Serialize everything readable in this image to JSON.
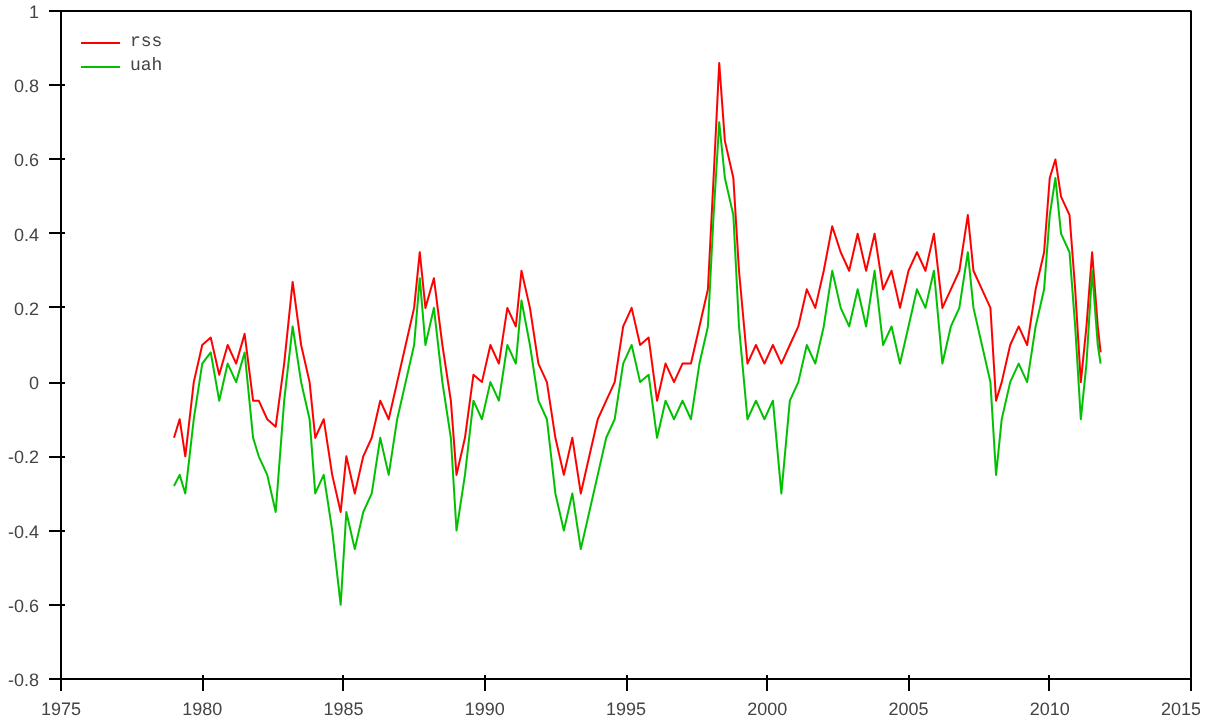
{
  "chart_data": {
    "type": "line",
    "xlim": [
      1975,
      2015
    ],
    "ylim": [
      -0.8,
      1
    ],
    "xticks": [
      1975,
      1980,
      1985,
      1990,
      1995,
      2000,
      2005,
      2010,
      2015
    ],
    "yticks": [
      -0.8,
      -0.6,
      -0.4,
      -0.2,
      0,
      0.2,
      0.4,
      0.6,
      0.8,
      1
    ],
    "grid": false,
    "legend": "top left",
    "x": [
      1979.0,
      1979.2,
      1979.4,
      1979.7,
      1980.0,
      1980.3,
      1980.6,
      1980.9,
      1981.2,
      1981.5,
      1981.8,
      1982.0,
      1982.3,
      1982.6,
      1982.9,
      1983.2,
      1983.5,
      1983.8,
      1984.0,
      1984.3,
      1984.6,
      1984.9,
      1985.1,
      1985.4,
      1985.7,
      1986.0,
      1986.3,
      1986.6,
      1986.9,
      1987.2,
      1987.5,
      1987.7,
      1987.9,
      1988.2,
      1988.5,
      1988.8,
      1989.0,
      1989.3,
      1989.6,
      1989.9,
      1990.2,
      1990.5,
      1990.8,
      1991.1,
      1991.3,
      1991.6,
      1991.9,
      1992.2,
      1992.5,
      1992.8,
      1993.1,
      1993.4,
      1993.7,
      1994.0,
      1994.3,
      1994.6,
      1994.9,
      1995.2,
      1995.5,
      1995.8,
      1996.1,
      1996.4,
      1996.7,
      1997.0,
      1997.3,
      1997.6,
      1997.9,
      1998.1,
      1998.3,
      1998.5,
      1998.8,
      1999.0,
      1999.3,
      1999.6,
      1999.9,
      2000.2,
      2000.5,
      2000.8,
      2001.1,
      2001.4,
      2001.7,
      2002.0,
      2002.3,
      2002.6,
      2002.9,
      2003.2,
      2003.5,
      2003.8,
      2004.1,
      2004.4,
      2004.7,
      2005.0,
      2005.3,
      2005.6,
      2005.9,
      2006.2,
      2006.5,
      2006.8,
      2007.1,
      2007.3,
      2007.6,
      2007.9,
      2008.1,
      2008.3,
      2008.6,
      2008.9,
      2009.2,
      2009.5,
      2009.8,
      2010.0,
      2010.2,
      2010.4,
      2010.7,
      2010.9,
      2011.1,
      2011.3,
      2011.5,
      2011.7,
      2011.8
    ],
    "series": [
      {
        "name": "rss",
        "color": "#ff0000",
        "values": [
          -0.15,
          -0.1,
          -0.2,
          0.0,
          0.1,
          0.12,
          0.02,
          0.1,
          0.05,
          0.13,
          -0.05,
          -0.05,
          -0.1,
          -0.12,
          0.05,
          0.27,
          0.1,
          0.0,
          -0.15,
          -0.1,
          -0.25,
          -0.35,
          -0.2,
          -0.3,
          -0.2,
          -0.15,
          -0.05,
          -0.1,
          0.0,
          0.1,
          0.2,
          0.35,
          0.2,
          0.28,
          0.1,
          -0.05,
          -0.25,
          -0.15,
          0.02,
          0.0,
          0.1,
          0.05,
          0.2,
          0.15,
          0.3,
          0.2,
          0.05,
          0.0,
          -0.15,
          -0.25,
          -0.15,
          -0.3,
          -0.2,
          -0.1,
          -0.05,
          0.0,
          0.15,
          0.2,
          0.1,
          0.12,
          -0.05,
          0.05,
          0.0,
          0.05,
          0.05,
          0.15,
          0.25,
          0.55,
          0.86,
          0.65,
          0.55,
          0.3,
          0.05,
          0.1,
          0.05,
          0.1,
          0.05,
          0.1,
          0.15,
          0.25,
          0.2,
          0.3,
          0.42,
          0.35,
          0.3,
          0.4,
          0.3,
          0.4,
          0.25,
          0.3,
          0.2,
          0.3,
          0.35,
          0.3,
          0.4,
          0.2,
          0.25,
          0.3,
          0.45,
          0.3,
          0.25,
          0.2,
          -0.05,
          0.0,
          0.1,
          0.15,
          0.1,
          0.25,
          0.35,
          0.55,
          0.6,
          0.5,
          0.45,
          0.25,
          0.0,
          0.15,
          0.35,
          0.15,
          0.08
        ]
      },
      {
        "name": "uah",
        "color": "#00c000",
        "values": [
          -0.28,
          -0.25,
          -0.3,
          -0.1,
          0.05,
          0.08,
          -0.05,
          0.05,
          0.0,
          0.08,
          -0.15,
          -0.2,
          -0.25,
          -0.35,
          -0.05,
          0.15,
          0.0,
          -0.1,
          -0.3,
          -0.25,
          -0.4,
          -0.6,
          -0.35,
          -0.45,
          -0.35,
          -0.3,
          -0.15,
          -0.25,
          -0.1,
          0.0,
          0.1,
          0.28,
          0.1,
          0.2,
          0.0,
          -0.15,
          -0.4,
          -0.25,
          -0.05,
          -0.1,
          0.0,
          -0.05,
          0.1,
          0.05,
          0.22,
          0.1,
          -0.05,
          -0.1,
          -0.3,
          -0.4,
          -0.3,
          -0.45,
          -0.35,
          -0.25,
          -0.15,
          -0.1,
          0.05,
          0.1,
          0.0,
          0.02,
          -0.15,
          -0.05,
          -0.1,
          -0.05,
          -0.1,
          0.05,
          0.15,
          0.45,
          0.7,
          0.55,
          0.45,
          0.15,
          -0.1,
          -0.05,
          -0.1,
          -0.05,
          -0.3,
          -0.05,
          0.0,
          0.1,
          0.05,
          0.15,
          0.3,
          0.2,
          0.15,
          0.25,
          0.15,
          0.3,
          0.1,
          0.15,
          0.05,
          0.15,
          0.25,
          0.2,
          0.3,
          0.05,
          0.15,
          0.2,
          0.35,
          0.2,
          0.1,
          0.0,
          -0.25,
          -0.1,
          0.0,
          0.05,
          0.0,
          0.15,
          0.25,
          0.45,
          0.55,
          0.4,
          0.35,
          0.15,
          -0.1,
          0.05,
          0.3,
          0.1,
          0.05
        ]
      }
    ]
  }
}
